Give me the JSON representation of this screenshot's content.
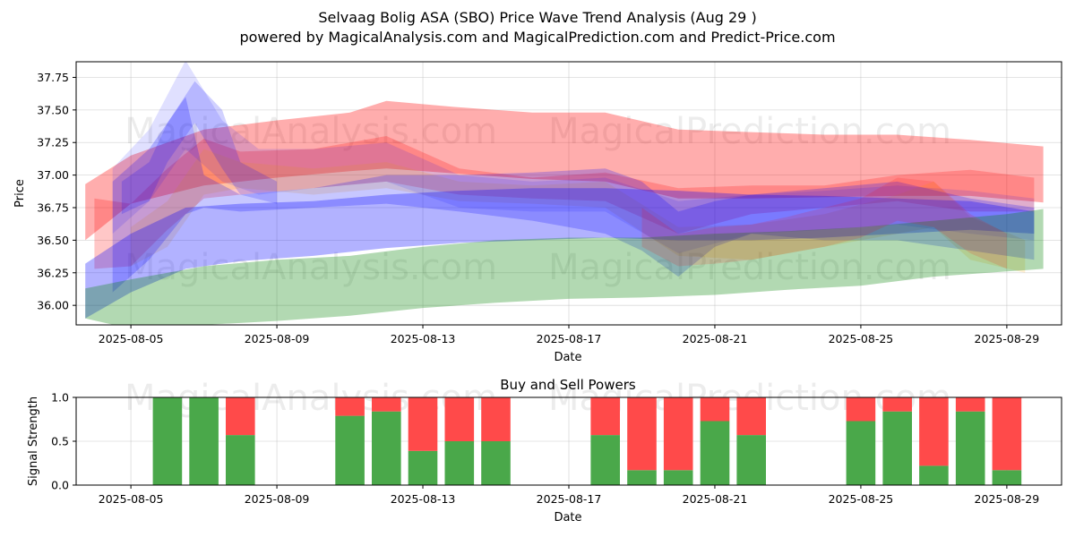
{
  "figure": {
    "title_line1": "Selvaag Bolig ASA (SBO) Price Wave Trend Analysis (Aug 29 )",
    "title_line2": "powered by MagicalAnalysis.com and MagicalPrediction.com and Predict-Price.com",
    "watermark_left": "MagicalAnalysis.com",
    "watermark_right": "MagicalPrediction.com"
  },
  "colors": {
    "red": "#ff0000",
    "blue": "#0000ff",
    "green": "#008000",
    "orange": "#ffa500",
    "buy": "#4aa84a",
    "sell": "#ff4a4a"
  },
  "chart_data": [
    {
      "type": "area",
      "title": "",
      "xlabel": "Date",
      "ylabel": "Price",
      "ylim": [
        35.85,
        37.87
      ],
      "xlim": [
        "2025-08-03 12:00",
        "2025-08-30 12:00"
      ],
      "grid": true,
      "x_ticks": [
        "2025-08-05",
        "2025-08-09",
        "2025-08-13",
        "2025-08-17",
        "2025-08-21",
        "2025-08-25",
        "2025-08-29"
      ],
      "y_ticks": [
        36.0,
        36.25,
        36.5,
        36.75,
        37.0,
        37.25,
        37.5,
        37.75
      ],
      "series": [
        {
          "color": "red",
          "opacity": 0.32,
          "x": [
            "2025-08-03 18:00",
            "2025-08-05",
            "2025-08-07",
            "2025-08-09",
            "2025-08-11",
            "2025-08-12",
            "2025-08-14",
            "2025-08-16",
            "2025-08-18",
            "2025-08-20",
            "2025-08-22",
            "2025-08-24",
            "2025-08-26",
            "2025-08-28",
            "2025-08-30"
          ],
          "upper": [
            36.93,
            37.15,
            37.35,
            37.42,
            37.48,
            37.57,
            37.52,
            37.48,
            37.48,
            37.35,
            37.33,
            37.31,
            37.31,
            37.27,
            37.22
          ],
          "lower": [
            36.5,
            36.78,
            36.92,
            36.98,
            37.03,
            37.05,
            37.01,
            36.97,
            36.95,
            36.82,
            36.82,
            36.83,
            36.84,
            36.84,
            36.79
          ]
        },
        {
          "color": "red",
          "opacity": 0.22,
          "x": [
            "2025-08-04",
            "2025-08-05",
            "2025-08-06",
            "2025-08-07",
            "2025-08-08",
            "2025-08-10",
            "2025-08-12",
            "2025-08-14",
            "2025-08-16",
            "2025-08-18",
            "2025-08-20",
            "2025-08-22",
            "2025-08-24",
            "2025-08-26",
            "2025-08-28",
            "2025-08-29 18:00"
          ],
          "upper": [
            36.82,
            36.78,
            37.05,
            37.28,
            37.18,
            37.2,
            37.3,
            37.05,
            36.98,
            37.02,
            36.9,
            36.92,
            36.92,
            37.0,
            37.04,
            36.98
          ],
          "lower": [
            36.28,
            36.3,
            36.58,
            36.82,
            36.85,
            36.9,
            36.95,
            36.85,
            36.82,
            36.8,
            36.55,
            36.7,
            36.75,
            36.8,
            36.72,
            36.72
          ]
        },
        {
          "color": "orange",
          "opacity": 0.18,
          "x": [
            "2025-08-05",
            "2025-08-06",
            "2025-08-07",
            "2025-08-08",
            "2025-08-10",
            "2025-08-12",
            "2025-08-14",
            "2025-08-16",
            "2025-08-18",
            "2025-08-20",
            "2025-08-22",
            "2025-08-24",
            "2025-08-26",
            "2025-08-27",
            "2025-08-28",
            "2025-08-29 12:00"
          ],
          "upper": [
            36.6,
            36.8,
            37.2,
            37.1,
            37.05,
            37.1,
            36.95,
            36.92,
            36.95,
            36.6,
            36.62,
            36.7,
            36.85,
            36.95,
            36.68,
            36.5
          ],
          "lower": [
            36.3,
            36.45,
            36.85,
            36.9,
            36.85,
            36.9,
            36.8,
            36.78,
            36.75,
            36.38,
            36.35,
            36.45,
            36.55,
            36.6,
            36.35,
            36.25
          ]
        },
        {
          "color": "blue",
          "opacity": 0.12,
          "x": [
            "2025-08-04 12:00",
            "2025-08-05 12:00",
            "2025-08-06 12:00",
            "2025-08-07 12:00",
            "2025-08-08 12:00",
            "2025-08-10",
            "2025-08-12",
            "2025-08-14",
            "2025-08-16",
            "2025-08-18",
            "2025-08-20",
            "2025-08-22",
            "2025-08-24",
            "2025-08-26",
            "2025-08-28",
            "2025-08-29 18:00"
          ],
          "upper": [
            37.05,
            37.35,
            37.88,
            37.42,
            37.2,
            37.2,
            37.25,
            37.0,
            36.95,
            36.98,
            36.8,
            36.85,
            36.88,
            36.92,
            36.88,
            36.82
          ],
          "lower": [
            36.55,
            36.8,
            37.2,
            36.95,
            36.85,
            36.9,
            36.95,
            36.75,
            36.72,
            36.72,
            36.4,
            36.55,
            36.58,
            36.62,
            36.55,
            36.5
          ]
        },
        {
          "color": "blue",
          "opacity": 0.22,
          "x": [
            "2025-08-04 12:00",
            "2025-08-05 12:00",
            "2025-08-06 12:00",
            "2025-08-07",
            "2025-08-08",
            "2025-08-10",
            "2025-08-12",
            "2025-08-14",
            "2025-08-16",
            "2025-08-18",
            "2025-08-19",
            "2025-08-20",
            "2025-08-21",
            "2025-08-22",
            "2025-08-24",
            "2025-08-26",
            "2025-08-28",
            "2025-08-29 18:00"
          ],
          "upper": [
            36.95,
            37.2,
            37.6,
            37.0,
            36.85,
            36.9,
            37.0,
            37.0,
            37.02,
            37.05,
            36.95,
            36.72,
            36.8,
            36.85,
            36.9,
            36.95,
            36.82,
            36.75
          ],
          "lower": [
            36.1,
            36.35,
            36.7,
            36.75,
            36.72,
            36.75,
            36.78,
            36.72,
            36.65,
            36.55,
            36.42,
            36.22,
            36.45,
            36.55,
            36.5,
            36.5,
            36.42,
            36.35
          ]
        },
        {
          "color": "blue",
          "opacity": 0.3,
          "x": [
            "2025-08-03 18:00",
            "2025-08-05",
            "2025-08-06 12:00",
            "2025-08-08",
            "2025-08-10",
            "2025-08-12",
            "2025-08-14",
            "2025-08-16",
            "2025-08-18",
            "2025-08-20",
            "2025-08-22",
            "2025-08-24",
            "2025-08-26",
            "2025-08-28",
            "2025-08-29 18:00"
          ],
          "upper": [
            36.32,
            36.55,
            36.75,
            36.78,
            36.8,
            36.85,
            36.88,
            36.9,
            36.9,
            36.88,
            36.85,
            36.84,
            36.82,
            36.8,
            36.72
          ],
          "lower": [
            35.9,
            36.1,
            36.28,
            36.34,
            36.38,
            36.44,
            36.48,
            36.5,
            36.52,
            36.5,
            36.5,
            36.52,
            36.55,
            36.58,
            36.55
          ]
        },
        {
          "color": "green",
          "opacity": 0.3,
          "x": [
            "2025-08-03 18:00",
            "2025-08-05",
            "2025-08-07",
            "2025-08-09",
            "2025-08-11",
            "2025-08-13",
            "2025-08-15",
            "2025-08-17",
            "2025-08-19",
            "2025-08-21",
            "2025-08-23",
            "2025-08-25",
            "2025-08-27",
            "2025-08-29",
            "2025-08-30"
          ],
          "upper": [
            36.13,
            36.2,
            36.3,
            36.35,
            36.38,
            36.45,
            36.5,
            36.52,
            36.52,
            36.55,
            36.57,
            36.6,
            36.65,
            36.7,
            36.74
          ],
          "lower": [
            35.9,
            35.82,
            35.85,
            35.88,
            35.92,
            35.98,
            36.02,
            36.05,
            36.06,
            36.08,
            36.12,
            36.15,
            36.22,
            36.26,
            36.28
          ]
        },
        {
          "color": "blue",
          "opacity": 0.18,
          "x": [
            "2025-08-04 18:00",
            "2025-08-05 12:00",
            "2025-08-06",
            "2025-08-06 18:00",
            "2025-08-07 12:00",
            "2025-08-08",
            "2025-08-09"
          ],
          "upper": [
            36.95,
            37.1,
            37.4,
            37.72,
            37.5,
            37.1,
            36.95
          ],
          "lower": [
            36.7,
            36.8,
            37.1,
            37.4,
            37.05,
            36.85,
            36.78
          ]
        },
        {
          "color": "red",
          "opacity": 0.14,
          "x": [
            "2025-08-19",
            "2025-08-20",
            "2025-08-21",
            "2025-08-22",
            "2025-08-23",
            "2025-08-24",
            "2025-08-25",
            "2025-08-26",
            "2025-08-27",
            "2025-08-28",
            "2025-08-29"
          ],
          "upper": [
            36.75,
            36.55,
            36.6,
            36.62,
            36.68,
            36.75,
            36.82,
            36.98,
            36.95,
            36.7,
            36.55
          ],
          "lower": [
            36.45,
            36.3,
            36.32,
            36.35,
            36.4,
            36.45,
            36.52,
            36.65,
            36.6,
            36.4,
            36.28
          ]
        }
      ]
    },
    {
      "type": "bar",
      "title": "Buy and Sell Powers",
      "xlabel": "Date",
      "ylabel": "Signal Strength",
      "ylim": [
        0,
        1
      ],
      "grid": true,
      "x_ticks": [
        "2025-08-05",
        "2025-08-09",
        "2025-08-13",
        "2025-08-17",
        "2025-08-21",
        "2025-08-25",
        "2025-08-29"
      ],
      "y_ticks": [
        "0.0",
        "0.5",
        "1.0"
      ],
      "dates": [
        "2025-08-06",
        "2025-08-07",
        "2025-08-08",
        "2025-08-11",
        "2025-08-12",
        "2025-08-13",
        "2025-08-14",
        "2025-08-15",
        "2025-08-18",
        "2025-08-19",
        "2025-08-20",
        "2025-08-21",
        "2025-08-22",
        "2025-08-25",
        "2025-08-26",
        "2025-08-27",
        "2025-08-28",
        "2025-08-29"
      ],
      "series": [
        {
          "name": "buy",
          "values": [
            1.0,
            1.0,
            0.57,
            0.79,
            0.84,
            0.39,
            0.5,
            0.5,
            0.57,
            0.17,
            0.17,
            0.73,
            0.57,
            0.73,
            0.84,
            0.22,
            0.84,
            0.17
          ]
        },
        {
          "name": "sell",
          "values": [
            0.0,
            0.0,
            0.43,
            0.21,
            0.16,
            0.61,
            0.5,
            0.5,
            0.43,
            0.83,
            0.83,
            0.27,
            0.43,
            0.27,
            0.16,
            0.78,
            0.16,
            0.83
          ]
        }
      ]
    }
  ]
}
